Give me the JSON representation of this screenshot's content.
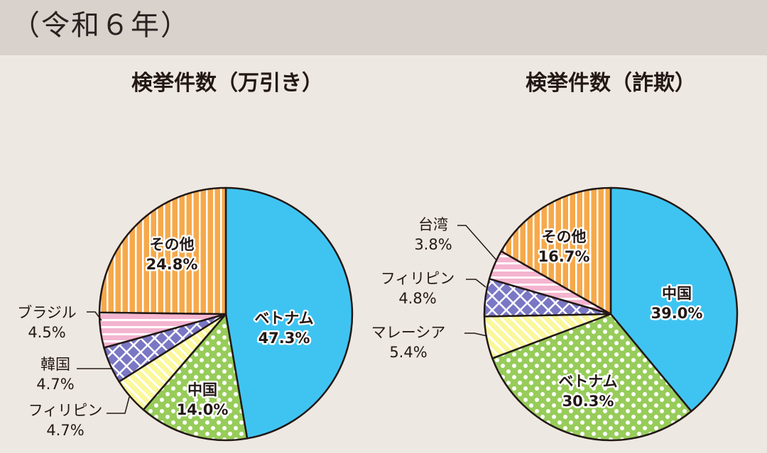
{
  "header": {
    "title": "（令和６年）"
  },
  "colors": {
    "betonamu": "#3fc4f2",
    "chugoku": "#97cc5a",
    "philippines": "#fbf79a",
    "kankoku": "#7a77c4",
    "brazil": "#f4b4cf",
    "taiwan": "#f4b4cf",
    "malaysia": "#fbf79a",
    "sonota": "#f6a94b",
    "outline": "#231815"
  },
  "chart_data": [
    {
      "type": "pie",
      "title": "検挙件数（万引き）",
      "slices": [
        {
          "name": "ベトナム",
          "value": 47.3,
          "label": "47.3%",
          "pattern": "solid",
          "color": "#3fc4f2"
        },
        {
          "name": "中国",
          "value": 14.0,
          "label": "14.0%",
          "pattern": "dots",
          "color": "#97cc5a"
        },
        {
          "name": "フィリピン",
          "value": 4.7,
          "label": "4.7%",
          "pattern": "diagonal",
          "color": "#fbf79a"
        },
        {
          "name": "韓国",
          "value": 4.7,
          "label": "4.7%",
          "pattern": "crosshatch",
          "color": "#7a77c4"
        },
        {
          "name": "ブラジル",
          "value": 4.5,
          "label": "4.5%",
          "pattern": "horizontal",
          "color": "#f4b4cf"
        },
        {
          "name": "その他",
          "value": 24.8,
          "label": "24.8%",
          "pattern": "vertical",
          "color": "#f6a94b"
        }
      ]
    },
    {
      "type": "pie",
      "title": "検挙件数（詐欺）",
      "slices": [
        {
          "name": "中国",
          "value": 39.0,
          "label": "39.0%",
          "pattern": "solid",
          "color": "#3fc4f2"
        },
        {
          "name": "ベトナム",
          "value": 30.3,
          "label": "30.3%",
          "pattern": "dots",
          "color": "#97cc5a"
        },
        {
          "name": "マレーシア",
          "value": 5.4,
          "label": "5.4%",
          "pattern": "diagonal",
          "color": "#fbf79a"
        },
        {
          "name": "フィリピン",
          "value": 4.8,
          "label": "4.8%",
          "pattern": "crosshatch",
          "color": "#7a77c4"
        },
        {
          "name": "台湾",
          "value": 3.8,
          "label": "3.8%",
          "pattern": "horizontal",
          "color": "#f4b4cf"
        },
        {
          "name": "その他",
          "value": 16.7,
          "label": "16.7%",
          "pattern": "vertical",
          "color": "#f6a94b"
        }
      ]
    }
  ]
}
